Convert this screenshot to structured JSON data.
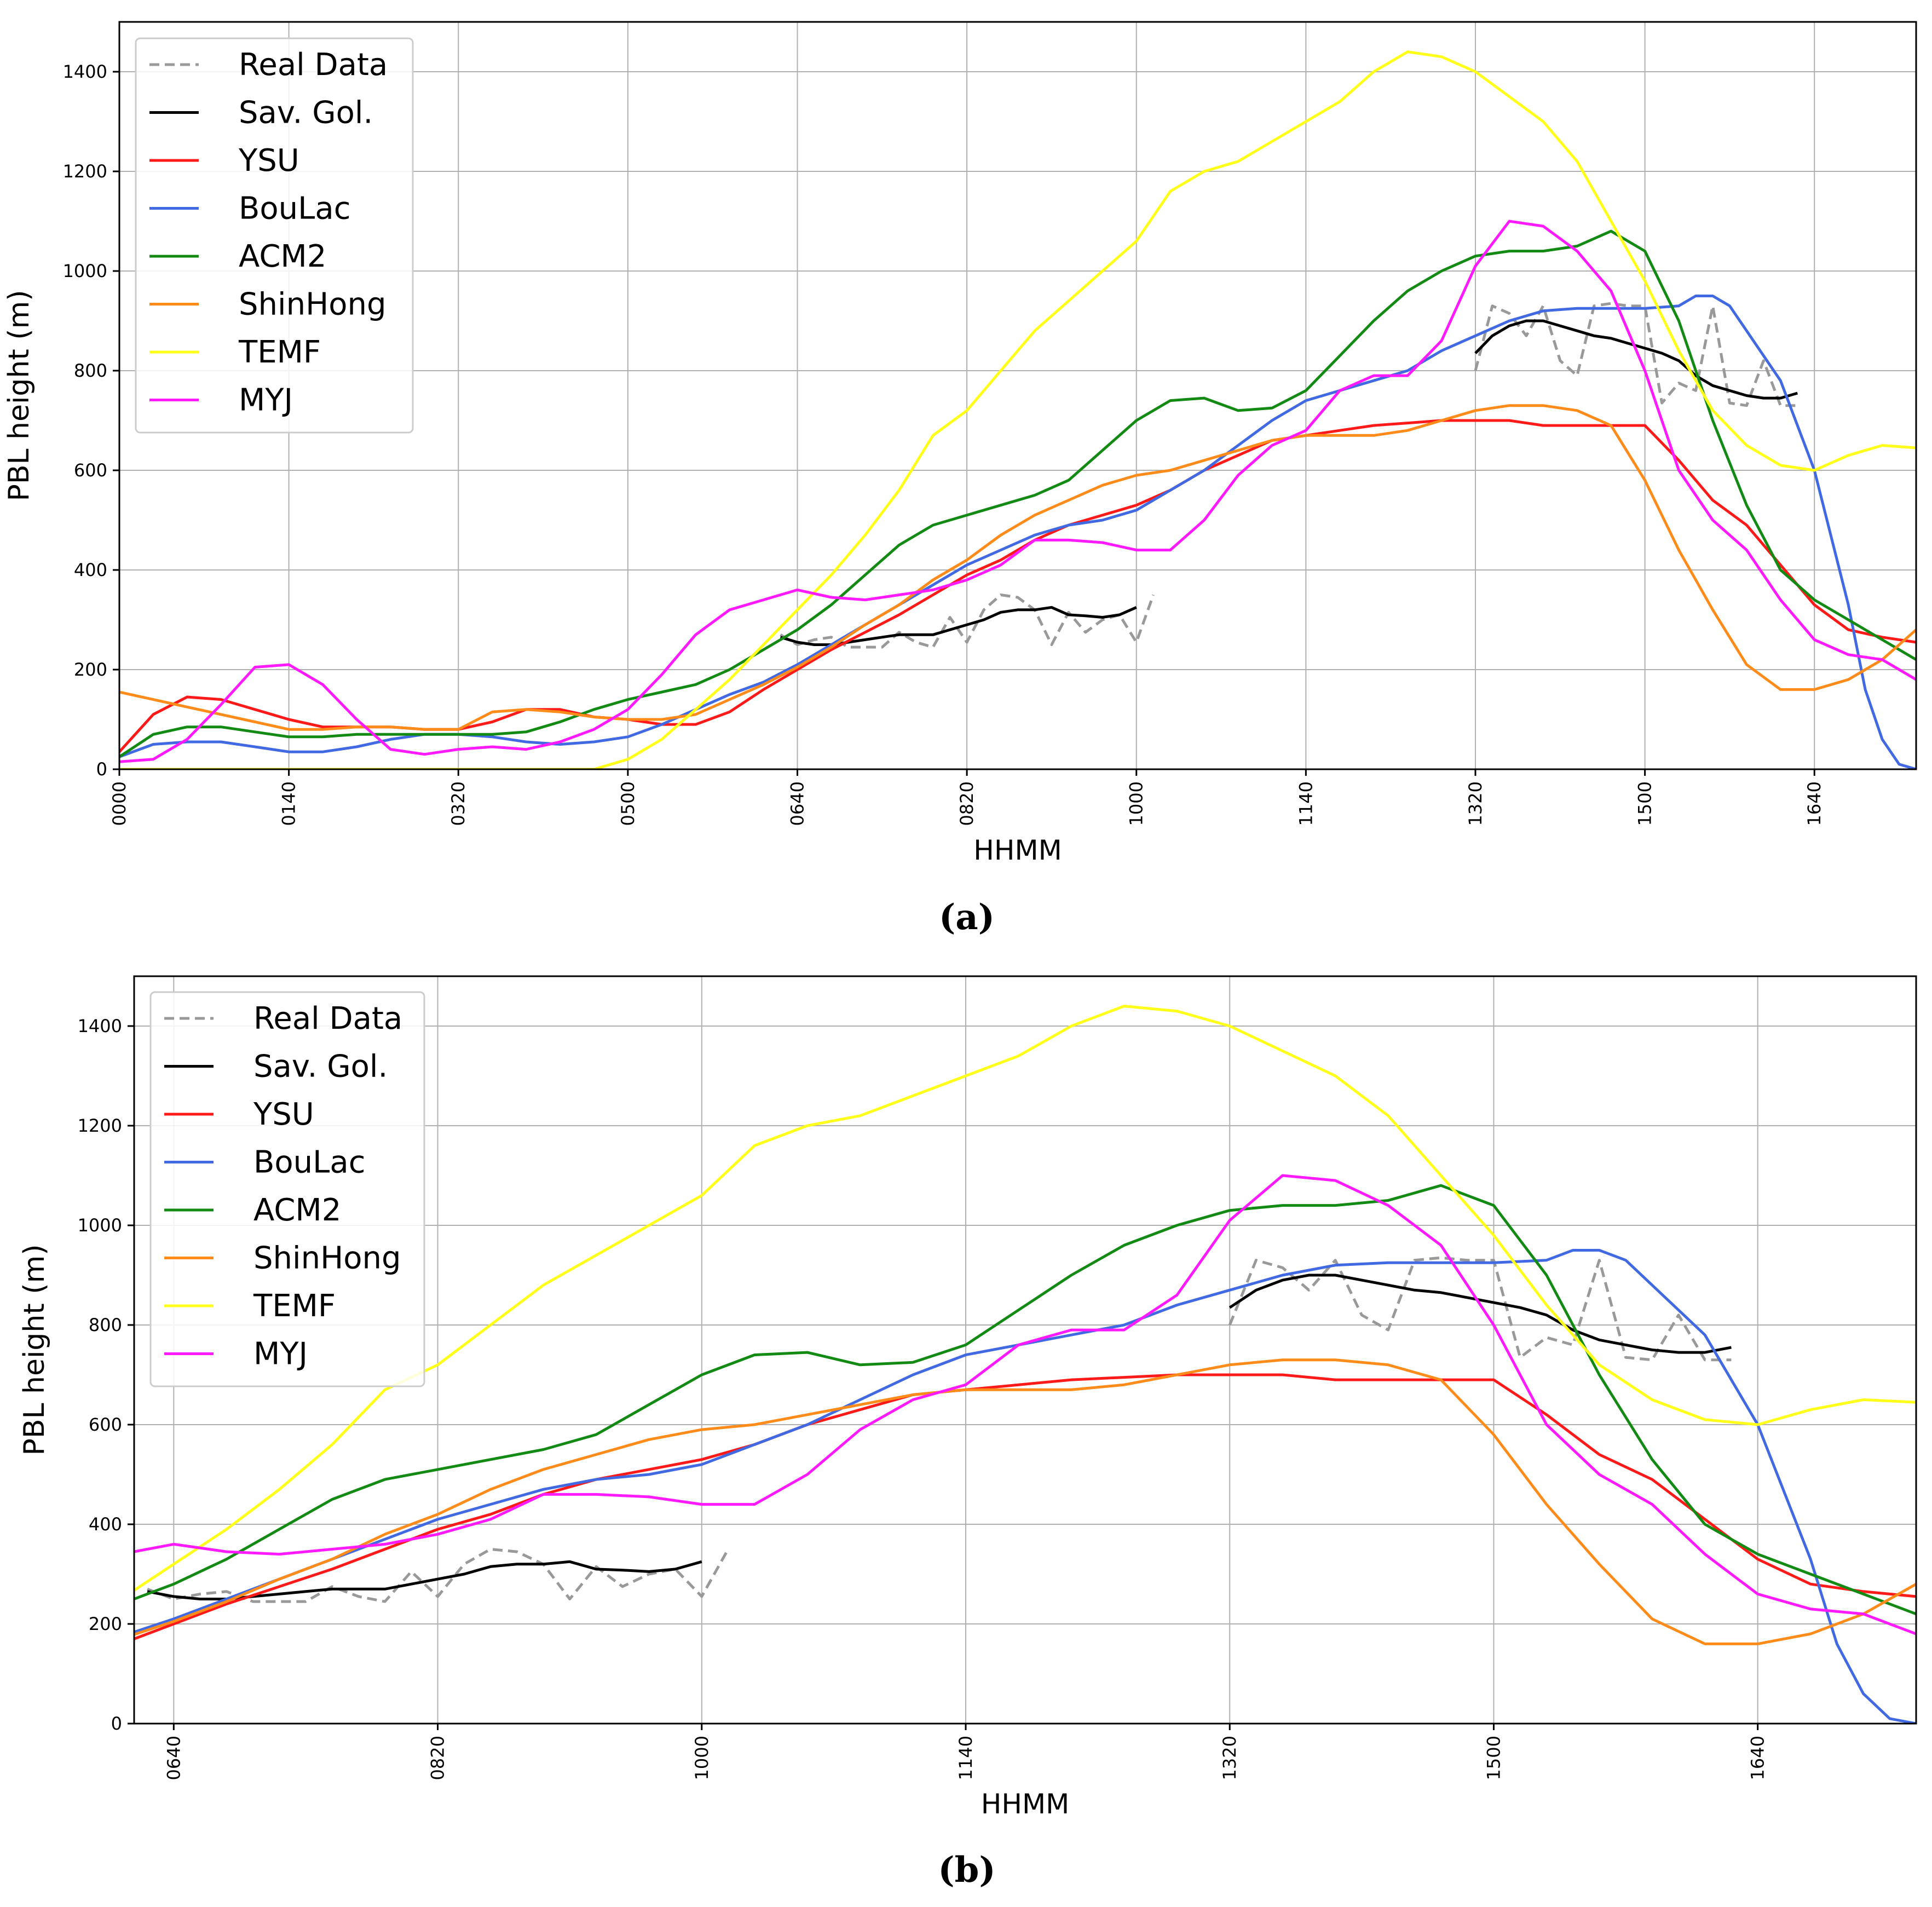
{
  "chart_data": [
    {
      "type": "line",
      "panel_label": "(a)",
      "xlabel": "HHMM",
      "ylabel": "PBL height (m)",
      "xlim": [
        0,
        1060
      ],
      "ylim": [
        0,
        1500
      ],
      "grid": true,
      "legend_position": "top-left",
      "x_ticks": [
        {
          "minutes": 0,
          "label": "0000"
        },
        {
          "minutes": 100,
          "label": "0140"
        },
        {
          "minutes": 200,
          "label": "0320"
        },
        {
          "minutes": 300,
          "label": "0500"
        },
        {
          "minutes": 400,
          "label": "0640"
        },
        {
          "minutes": 500,
          "label": "0820"
        },
        {
          "minutes": 600,
          "label": "1000"
        },
        {
          "minutes": 700,
          "label": "1140"
        },
        {
          "minutes": 800,
          "label": "1320"
        },
        {
          "minutes": 900,
          "label": "1500"
        },
        {
          "minutes": 1000,
          "label": "1640"
        }
      ],
      "y_ticks": [
        0,
        200,
        400,
        600,
        800,
        1000,
        1200,
        1400
      ],
      "series": [
        {
          "name": "Real Data",
          "color": "#999999",
          "dashed": true,
          "x": [
            390,
            400,
            410,
            420,
            430,
            440,
            450,
            460,
            470,
            480,
            490,
            500,
            510,
            520,
            530,
            540,
            550,
            560,
            570,
            580,
            590,
            600,
            610,
            620,
            630,
            640,
            650,
            660,
            670,
            680,
            690,
            700,
            710,
            720,
            730,
            740,
            750,
            760,
            770,
            780,
            790,
            800,
            810,
            820,
            830,
            840,
            850,
            860,
            870,
            880,
            890,
            900,
            910,
            920,
            930,
            940,
            950,
            960,
            970,
            980,
            990
          ],
          "values": [
            270,
            250,
            260,
            265,
            245,
            245,
            245,
            275,
            255,
            245,
            305,
            255,
            320,
            350,
            345,
            320,
            250,
            315,
            275,
            300,
            310,
            255,
            350,
            null,
            null,
            null,
            null,
            null,
            null,
            null,
            null,
            null,
            null,
            null,
            null,
            null,
            null,
            null,
            null,
            null,
            null,
            800,
            930,
            915,
            870,
            930,
            820,
            790,
            930,
            935,
            930,
            930,
            735,
            775,
            760,
            930,
            735,
            730,
            820,
            730,
            730
          ]
        },
        {
          "name": "Sav. Gol.",
          "color": "#000000",
          "x": [
            390,
            400,
            410,
            420,
            430,
            440,
            450,
            460,
            470,
            480,
            490,
            500,
            510,
            520,
            530,
            540,
            550,
            560,
            570,
            580,
            590,
            600,
            610,
            620,
            630,
            640,
            650,
            660,
            670,
            680,
            690,
            700,
            710,
            720,
            730,
            740,
            750,
            760,
            770,
            780,
            790,
            800,
            810,
            820,
            830,
            840,
            850,
            860,
            870,
            880,
            890,
            900,
            910,
            920,
            930,
            940,
            950,
            960,
            970,
            980,
            990
          ],
          "values": [
            265,
            255,
            250,
            250,
            255,
            260,
            265,
            270,
            270,
            270,
            280,
            290,
            300,
            315,
            320,
            320,
            325,
            310,
            308,
            305,
            310,
            325,
            null,
            null,
            null,
            null,
            null,
            null,
            null,
            null,
            null,
            null,
            null,
            null,
            null,
            null,
            null,
            null,
            null,
            null,
            null,
            835,
            870,
            890,
            900,
            900,
            890,
            880,
            870,
            865,
            855,
            845,
            835,
            820,
            790,
            770,
            760,
            750,
            745,
            745,
            755
          ]
        },
        {
          "name": "YSU",
          "color": "#ff1a1a",
          "x": [
            0,
            20,
            40,
            60,
            80,
            100,
            120,
            140,
            160,
            180,
            200,
            220,
            240,
            260,
            280,
            300,
            320,
            340,
            360,
            380,
            400,
            420,
            440,
            460,
            480,
            500,
            520,
            540,
            560,
            580,
            600,
            620,
            640,
            660,
            680,
            700,
            720,
            740,
            760,
            780,
            800,
            820,
            840,
            860,
            880,
            900,
            920,
            940,
            960,
            980,
            1000,
            1020,
            1040,
            1060
          ],
          "values": [
            35,
            110,
            145,
            140,
            120,
            100,
            85,
            85,
            85,
            80,
            80,
            95,
            120,
            120,
            105,
            100,
            90,
            90,
            115,
            160,
            200,
            240,
            275,
            310,
            350,
            390,
            420,
            460,
            490,
            510,
            530,
            560,
            600,
            630,
            660,
            670,
            680,
            690,
            695,
            700,
            700,
            700,
            690,
            690,
            690,
            690,
            620,
            540,
            490,
            410,
            330,
            280,
            265,
            255
          ]
        },
        {
          "name": "BouLac",
          "color": "#4169e1",
          "x": [
            0,
            20,
            40,
            60,
            80,
            100,
            120,
            140,
            160,
            180,
            200,
            220,
            240,
            260,
            280,
            300,
            320,
            340,
            360,
            380,
            400,
            420,
            440,
            460,
            480,
            500,
            520,
            540,
            560,
            580,
            600,
            620,
            640,
            660,
            680,
            700,
            720,
            740,
            760,
            780,
            800,
            820,
            840,
            860,
            880,
            900,
            920,
            930,
            940,
            950,
            960,
            980,
            1000,
            1020,
            1030,
            1040,
            1050,
            1060
          ],
          "values": [
            25,
            50,
            55,
            55,
            45,
            35,
            35,
            45,
            60,
            70,
            70,
            65,
            55,
            50,
            55,
            65,
            90,
            120,
            150,
            175,
            210,
            250,
            290,
            330,
            370,
            410,
            440,
            470,
            490,
            500,
            520,
            560,
            600,
            650,
            700,
            740,
            760,
            780,
            800,
            840,
            870,
            900,
            920,
            925,
            925,
            925,
            930,
            950,
            950,
            930,
            880,
            780,
            600,
            330,
            160,
            60,
            10,
            0
          ]
        },
        {
          "name": "ACM2",
          "color": "#138a13",
          "x": [
            0,
            20,
            40,
            60,
            80,
            100,
            120,
            140,
            160,
            180,
            200,
            220,
            240,
            260,
            280,
            300,
            320,
            340,
            360,
            380,
            400,
            420,
            440,
            460,
            480,
            500,
            520,
            540,
            560,
            580,
            600,
            620,
            640,
            660,
            680,
            700,
            720,
            740,
            760,
            780,
            800,
            820,
            840,
            860,
            880,
            900,
            920,
            940,
            960,
            980,
            1000,
            1020,
            1040,
            1060
          ],
          "values": [
            25,
            70,
            85,
            85,
            75,
            65,
            65,
            70,
            70,
            70,
            70,
            70,
            75,
            95,
            120,
            140,
            155,
            170,
            200,
            240,
            280,
            330,
            390,
            450,
            490,
            510,
            530,
            550,
            580,
            640,
            700,
            740,
            745,
            720,
            725,
            760,
            830,
            900,
            960,
            1000,
            1030,
            1040,
            1040,
            1050,
            1080,
            1040,
            900,
            700,
            530,
            400,
            340,
            300,
            260,
            220
          ]
        },
        {
          "name": "ShinHong",
          "color": "#ff8c1a",
          "x": [
            0,
            20,
            40,
            60,
            80,
            100,
            120,
            140,
            160,
            180,
            200,
            220,
            240,
            260,
            280,
            300,
            320,
            340,
            360,
            380,
            400,
            420,
            440,
            460,
            480,
            500,
            520,
            540,
            560,
            580,
            600,
            620,
            640,
            660,
            680,
            700,
            720,
            740,
            760,
            780,
            800,
            820,
            840,
            860,
            880,
            900,
            920,
            940,
            960,
            980,
            1000,
            1020,
            1040,
            1060
          ],
          "values": [
            155,
            140,
            125,
            110,
            95,
            80,
            80,
            85,
            85,
            80,
            80,
            115,
            120,
            115,
            105,
            100,
            100,
            110,
            140,
            170,
            205,
            245,
            290,
            330,
            380,
            420,
            470,
            510,
            540,
            570,
            590,
            600,
            620,
            640,
            660,
            670,
            670,
            670,
            680,
            700,
            720,
            730,
            730,
            720,
            690,
            580,
            440,
            320,
            210,
            160,
            160,
            180,
            220,
            280
          ]
        },
        {
          "name": "TEMF",
          "color": "#ffff1a",
          "x": [
            0,
            40,
            80,
            120,
            160,
            200,
            240,
            280,
            300,
            320,
            340,
            360,
            380,
            400,
            420,
            440,
            460,
            480,
            500,
            520,
            540,
            560,
            580,
            600,
            620,
            640,
            660,
            680,
            700,
            720,
            740,
            760,
            780,
            800,
            820,
            840,
            860,
            880,
            900,
            920,
            940,
            960,
            980,
            1000,
            1020,
            1040,
            1060
          ],
          "values": [
            0,
            0,
            0,
            0,
            0,
            0,
            0,
            0,
            20,
            60,
            120,
            180,
            250,
            320,
            390,
            470,
            560,
            670,
            720,
            800,
            880,
            940,
            1000,
            1060,
            1160,
            1200,
            1220,
            1260,
            1300,
            1340,
            1400,
            1440,
            1430,
            1400,
            1350,
            1300,
            1220,
            1100,
            980,
            840,
            720,
            650,
            610,
            600,
            630,
            650,
            645
          ]
        },
        {
          "name": "MYJ",
          "color": "#ff1aff",
          "x": [
            0,
            20,
            40,
            60,
            80,
            100,
            120,
            140,
            160,
            180,
            200,
            220,
            240,
            260,
            280,
            300,
            320,
            340,
            360,
            380,
            400,
            420,
            440,
            460,
            480,
            500,
            520,
            540,
            560,
            580,
            600,
            620,
            640,
            660,
            680,
            700,
            720,
            740,
            760,
            780,
            800,
            820,
            840,
            860,
            880,
            900,
            920,
            940,
            960,
            980,
            1000,
            1020,
            1040,
            1060
          ],
          "values": [
            15,
            20,
            60,
            130,
            205,
            210,
            170,
            100,
            40,
            30,
            40,
            45,
            40,
            55,
            80,
            120,
            190,
            270,
            320,
            340,
            360,
            345,
            340,
            350,
            360,
            380,
            410,
            460,
            460,
            455,
            440,
            440,
            500,
            590,
            650,
            680,
            760,
            790,
            790,
            860,
            1010,
            1100,
            1090,
            1040,
            960,
            800,
            600,
            500,
            440,
            340,
            260,
            230,
            220,
            180
          ]
        }
      ]
    },
    {
      "type": "line",
      "panel_label": "(b)",
      "xlabel": "HHMM",
      "ylabel": "PBL height (m)",
      "xlim": [
        385,
        1060
      ],
      "ylim": [
        0,
        1500
      ],
      "grid": true,
      "legend_position": "top-left",
      "x_ticks": [
        {
          "minutes": 400,
          "label": "0640"
        },
        {
          "minutes": 500,
          "label": "0820"
        },
        {
          "minutes": 600,
          "label": "1000"
        },
        {
          "minutes": 700,
          "label": "1140"
        },
        {
          "minutes": 800,
          "label": "1320"
        },
        {
          "minutes": 900,
          "label": "1500"
        },
        {
          "minutes": 1000,
          "label": "1640"
        }
      ],
      "y_ticks": [
        0,
        200,
        400,
        600,
        800,
        1000,
        1200,
        1400
      ],
      "series": "same as panel (a), clipped to the x range"
    }
  ]
}
